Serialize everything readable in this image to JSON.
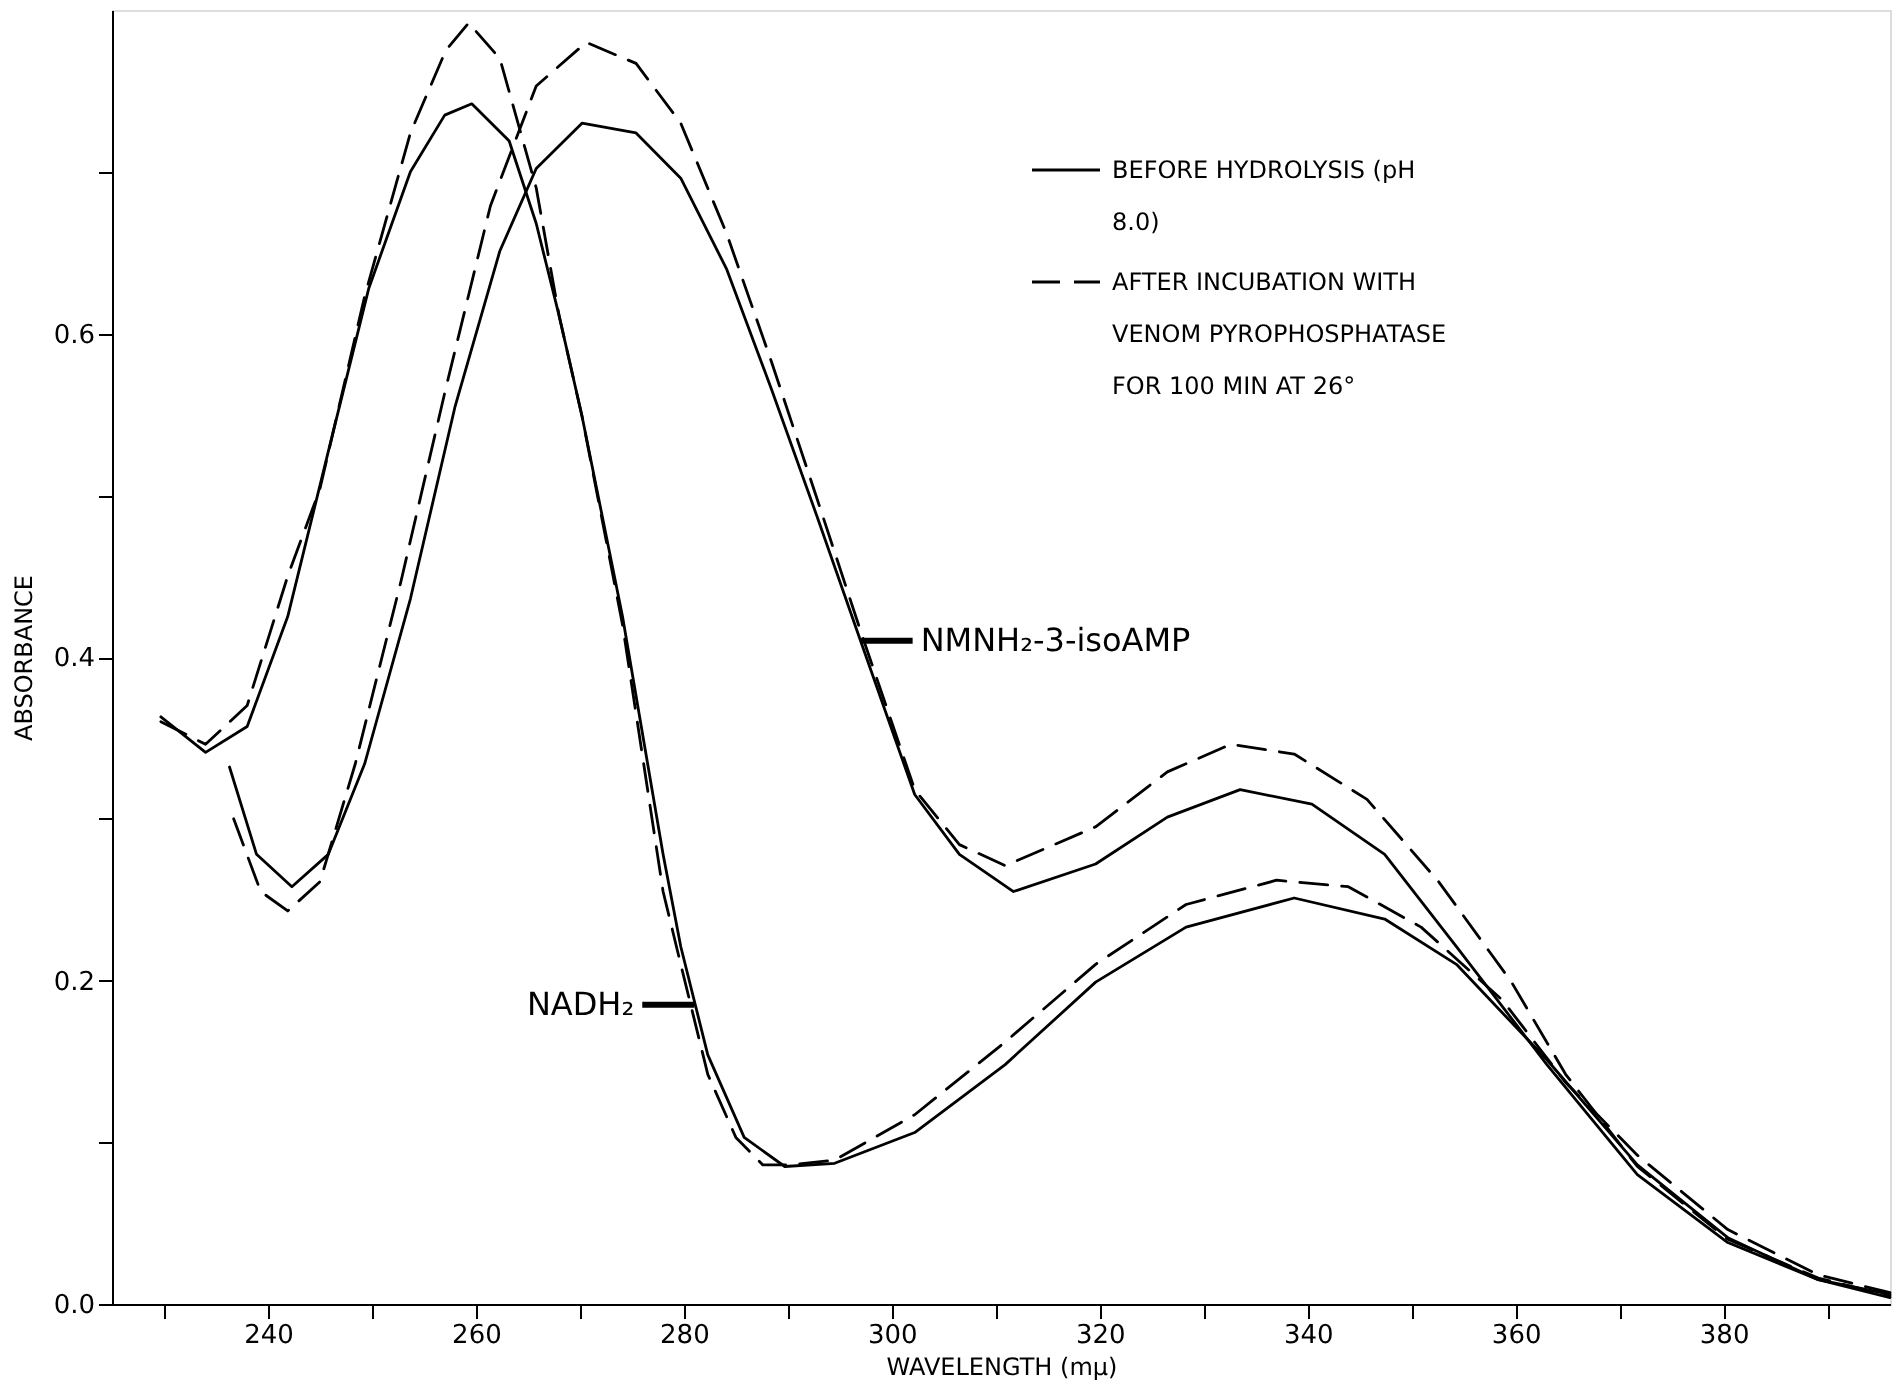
{
  "chart_data": {
    "type": "line",
    "xlabel": "WAVELENGTH (mμ)",
    "ylabel": "ABSORBANCE",
    "xlim": [
      225,
      396
    ],
    "ylim": [
      0,
      0.8
    ],
    "xticks": [
      {
        "value": 230,
        "label": null
      },
      240,
      {
        "value": 250,
        "label": null
      },
      260,
      {
        "value": 270,
        "label": null
      },
      280,
      {
        "value": 290,
        "label": null
      },
      300,
      {
        "value": 310,
        "label": null
      },
      320,
      {
        "value": 330,
        "label": null
      },
      340,
      {
        "value": 350,
        "label": null
      },
      360,
      {
        "value": 370,
        "label": null
      },
      380,
      {
        "value": 390,
        "label": null
      }
    ],
    "yticks": [
      {
        "value": 0,
        "label": "0.0"
      },
      {
        "value": 0.1,
        "label": null
      },
      {
        "value": 0.2,
        "label": "0.2"
      },
      {
        "value": 0.3,
        "label": null
      },
      {
        "value": 0.4,
        "label": "0.4"
      },
      {
        "value": 0.5,
        "label": null
      },
      {
        "value": 0.6,
        "label": "0.6"
      },
      {
        "value": 0.7,
        "label": null
      }
    ],
    "grid": false,
    "legend": "top right",
    "marker": "none",
    "annotations": [
      {
        "text": "NADH₂",
        "x": 281,
        "y": 0.185
      },
      {
        "text": "NMNH₂-3-isoAMP",
        "x": 297,
        "y": 0.41
      }
    ],
    "series": [
      {
        "name": "BEFORE HYDROLYSIS (pH 8.0)",
        "color": "#000000",
        "line_style": "solid",
        "x": [
          229.7,
          234,
          238,
          241.9,
          245.8,
          249.7,
          253.7,
          257,
          259.6,
          263.2,
          265.8,
          268,
          270.2,
          274.1,
          278,
          279.7,
          282.3,
          285.8,
          289.7,
          294.5,
          302.2,
          310.9,
          319.6,
          328.3,
          338.7,
          347.4,
          354.3,
          363,
          371.7,
          380.4,
          389.1,
          396
        ],
        "values": [
          0.363,
          0.341,
          0.357,
          0.425,
          0.527,
          0.628,
          0.7,
          0.735,
          0.742,
          0.719,
          0.668,
          0.611,
          0.549,
          0.425,
          0.278,
          0.221,
          0.154,
          0.103,
          0.085,
          0.087,
          0.106,
          0.148,
          0.199,
          0.233,
          0.251,
          0.238,
          0.21,
          0.151,
          0.086,
          0.041,
          0.015,
          0.006
        ]
      },
      {
        "name": "AFTER INCUBATION WITH VENOM PYROPHOSPHATASE FOR 100 MIN AT 26°",
        "color": "#000000",
        "line_style": "dashed",
        "x": [
          229.7,
          234,
          238,
          241.9,
          245,
          249.3,
          253.7,
          257.1,
          259.3,
          262.3,
          265.8,
          268,
          270.2,
          274.1,
          278,
          279.7,
          282.3,
          285,
          287.6,
          290.2,
          294.5,
          302.2,
          310.9,
          319.6,
          328.3,
          337,
          343.9,
          350.9,
          358.7,
          364.8,
          371.7,
          380.4,
          389.1,
          396
        ],
        "values": [
          0.36,
          0.346,
          0.37,
          0.45,
          0.504,
          0.623,
          0.724,
          0.775,
          0.792,
          0.77,
          0.69,
          0.611,
          0.549,
          0.42,
          0.255,
          0.21,
          0.142,
          0.103,
          0.086,
          0.086,
          0.089,
          0.117,
          0.162,
          0.21,
          0.247,
          0.262,
          0.258,
          0.233,
          0.188,
          0.137,
          0.092,
          0.046,
          0.018,
          0.007
        ]
      },
      {
        "color": "#000000",
        "line_style": "solid",
        "x": [
          236.3,
          238.9,
          242.3,
          245.8,
          249.3,
          253.7,
          258,
          262.3,
          265.8,
          270.2,
          275.4,
          279.7,
          284.1,
          288.4,
          292.8,
          297.1,
          302.2,
          306.5,
          311.7,
          319.6,
          326.5,
          333.5,
          340.4,
          347.4,
          354.3,
          363,
          371.7,
          380.4,
          389.1,
          396
        ],
        "values": [
          0.332,
          0.278,
          0.258,
          0.278,
          0.334,
          0.436,
          0.555,
          0.651,
          0.702,
          0.73,
          0.724,
          0.696,
          0.64,
          0.566,
          0.487,
          0.408,
          0.315,
          0.278,
          0.255,
          0.272,
          0.301,
          0.318,
          0.309,
          0.278,
          0.221,
          0.148,
          0.08,
          0.038,
          0.015,
          0.004
        ]
      },
      {
        "color": "#000000",
        "line_style": "dashed",
        "x": [
          236.7,
          239.3,
          241.9,
          245,
          248.4,
          252.8,
          257.1,
          261.4,
          265.8,
          270.6,
          275.4,
          279.7,
          284.1,
          288.4,
          292.8,
          297.1,
          302.2,
          306.5,
          310.9,
          319.6,
          326.5,
          332.6,
          338.7,
          345.7,
          352.6,
          359.6,
          364.8,
          371.7,
          380.4,
          389.1,
          396
        ],
        "values": [
          0.3,
          0.255,
          0.243,
          0.261,
          0.334,
          0.447,
          0.566,
          0.679,
          0.753,
          0.78,
          0.767,
          0.73,
          0.662,
          0.583,
          0.498,
          0.414,
          0.318,
          0.284,
          0.271,
          0.295,
          0.329,
          0.346,
          0.34,
          0.312,
          0.261,
          0.199,
          0.142,
          0.085,
          0.04,
          0.016,
          0.005
        ]
      }
    ]
  }
}
